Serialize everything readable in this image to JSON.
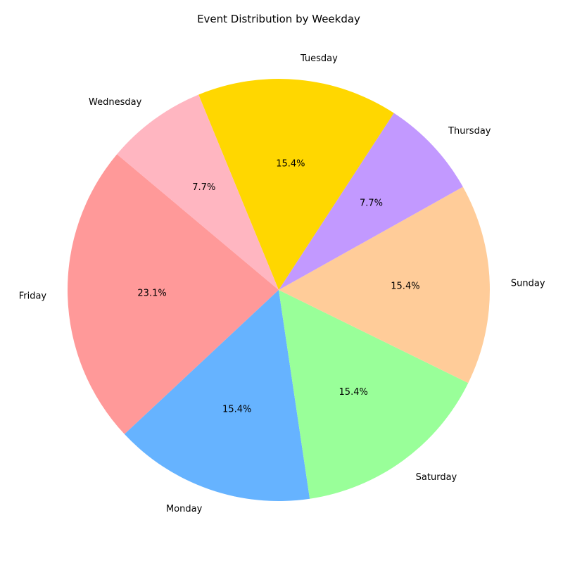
{
  "chart_data": {
    "type": "pie",
    "title": "Event Distribution by Weekday",
    "categories": [
      "Friday",
      "Monday",
      "Saturday",
      "Sunday",
      "Thursday",
      "Tuesday",
      "Wednesday"
    ],
    "values": [
      3,
      2,
      2,
      2,
      1,
      2,
      1
    ],
    "percent_labels": [
      "23.1%",
      "15.4%",
      "15.4%",
      "15.4%",
      "7.7%",
      "15.4%",
      "7.7%"
    ],
    "colors": [
      "#ff9999",
      "#66b3ff",
      "#99ff99",
      "#ffcc99",
      "#c299ff",
      "#ffd700",
      "#ffb6c1"
    ],
    "start_angle_deg": 140,
    "direction": "counterclockwise"
  }
}
